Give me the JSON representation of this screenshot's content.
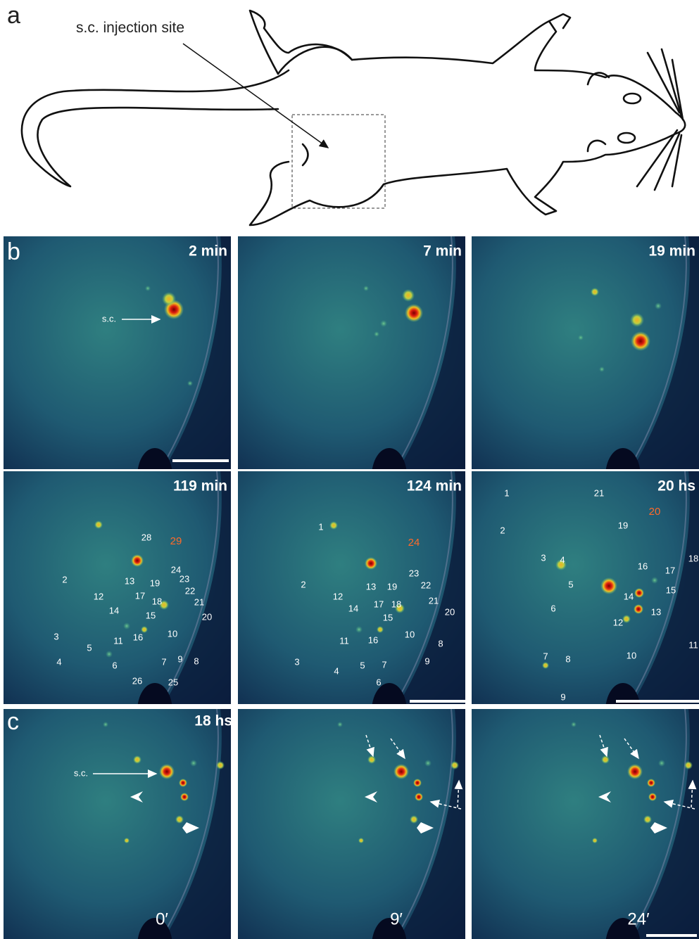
{
  "panel_labels": [
    "a",
    "b",
    "c"
  ],
  "panel_a": {
    "annotation": "s.c. injection site"
  },
  "panel_b": {
    "images": [
      {
        "time": "2 min",
        "annotation": "s.c."
      },
      {
        "time": "7 min"
      },
      {
        "time": "19 min"
      },
      {
        "time": "119 min",
        "labels": [
          "28",
          "29",
          "2",
          "13",
          "19",
          "24",
          "23",
          "22",
          "12",
          "17",
          "18",
          "21",
          "14",
          "15",
          "20",
          "3",
          "16",
          "10",
          "11",
          "5",
          "4",
          "6",
          "7",
          "9",
          "8",
          "26",
          "25"
        ]
      },
      {
        "time": "124 min",
        "labels": [
          "1",
          "24",
          "23",
          "22",
          "2",
          "13",
          "19",
          "12",
          "21",
          "17",
          "18",
          "14",
          "15",
          "20",
          "10",
          "16",
          "8",
          "11",
          "3",
          "5",
          "7",
          "9",
          "4",
          "6"
        ]
      },
      {
        "time": "20 hs",
        "labels": [
          "1",
          "21",
          "20",
          "19",
          "2",
          "3",
          "4",
          "16",
          "17",
          "18",
          "5",
          "15",
          "6",
          "14",
          "13",
          "12",
          "11",
          "7",
          "8",
          "10",
          "9"
        ]
      }
    ]
  },
  "panel_c": {
    "time": "18 hs",
    "annotation": "s.c.",
    "frames": [
      "0′",
      "9′",
      "24′"
    ]
  }
}
